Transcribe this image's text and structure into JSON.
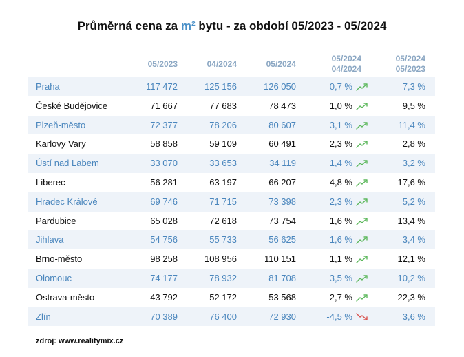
{
  "title": {
    "prefix": "Průměrná cena za ",
    "unit": "m²",
    "suffix": " bytu  -  za období 05/2023  -  05/2024"
  },
  "headers": {
    "col1": "05/2023",
    "col2": "04/2024",
    "col3": "05/2024",
    "col4_top": "05/2024",
    "col4_bottom": "04/2024",
    "col5_top": "05/2024",
    "col5_bottom": "05/2023"
  },
  "rows": [
    {
      "city": "Praha",
      "v1": "117 472",
      "v2": "125 156",
      "v3": "126 050",
      "mom": "0,7 %",
      "trend": "up",
      "yoy": "7,3 %"
    },
    {
      "city": "České Budějovice",
      "v1": "71 667",
      "v2": "77 683",
      "v3": "78 473",
      "mom": "1,0 %",
      "trend": "up",
      "yoy": "9,5 %"
    },
    {
      "city": "Plzeň-město",
      "v1": "72 377",
      "v2": "78 206",
      "v3": "80 607",
      "mom": "3,1 %",
      "trend": "up",
      "yoy": "11,4 %"
    },
    {
      "city": "Karlovy Vary",
      "v1": "58 858",
      "v2": "59 109",
      "v3": "60 491",
      "mom": "2,3 %",
      "trend": "up",
      "yoy": "2,8 %"
    },
    {
      "city": "Ústí nad Labem",
      "v1": "33 070",
      "v2": "33 653",
      "v3": "34 119",
      "mom": "1,4 %",
      "trend": "up",
      "yoy": "3,2 %"
    },
    {
      "city": "Liberec",
      "v1": "56 281",
      "v2": "63 197",
      "v3": "66 207",
      "mom": "4,8 %",
      "trend": "up",
      "yoy": "17,6 %"
    },
    {
      "city": "Hradec Králové",
      "v1": "69 746",
      "v2": "71 715",
      "v3": "73 398",
      "mom": "2,3 %",
      "trend": "up",
      "yoy": "5,2 %"
    },
    {
      "city": "Pardubice",
      "v1": "65 028",
      "v2": "72 618",
      "v3": "73 754",
      "mom": "1,6 %",
      "trend": "up",
      "yoy": "13,4 %"
    },
    {
      "city": "Jihlava",
      "v1": "54 756",
      "v2": "55 733",
      "v3": "56 625",
      "mom": "1,6 %",
      "trend": "up",
      "yoy": "3,4 %"
    },
    {
      "city": "Brno-město",
      "v1": "98 258",
      "v2": "108 956",
      "v3": "110 151",
      "mom": "1,1 %",
      "trend": "up",
      "yoy": "12,1 %"
    },
    {
      "city": "Olomouc",
      "v1": "74 177",
      "v2": "78 932",
      "v3": "81 708",
      "mom": "3,5 %",
      "trend": "up",
      "yoy": "10,2 %"
    },
    {
      "city": "Ostrava-město",
      "v1": "43 792",
      "v2": "52 172",
      "v3": "53 568",
      "mom": "2,7 %",
      "trend": "up",
      "yoy": "22,3 %"
    },
    {
      "city": "Zlín",
      "v1": "70 389",
      "v2": "76 400",
      "v3": "72 930",
      "mom": "-4,5 %",
      "trend": "down",
      "yoy": "3,6 %"
    }
  ],
  "colors": {
    "up_arrow": "#5cb85c",
    "down_arrow": "#d9534f"
  },
  "source": "zdroj:  www.realitymix.cz"
}
